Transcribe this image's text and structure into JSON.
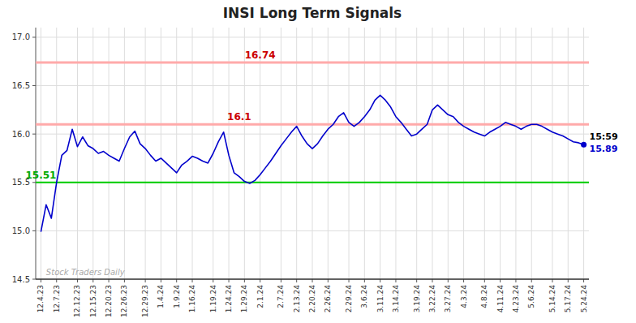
{
  "chart_data": {
    "type": "line",
    "title": "INSI Long Term Signals",
    "categories": [
      "12.4.23",
      null,
      null,
      "12.7.23",
      null,
      null,
      null,
      "12.12.23",
      null,
      null,
      "12.15.23",
      null,
      null,
      "12.20.23",
      null,
      null,
      "12.26.23",
      null,
      null,
      null,
      "12.29.23",
      null,
      null,
      "1.4.24",
      null,
      null,
      "1.9.24",
      null,
      null,
      "1.16.24",
      null,
      null,
      null,
      "1.19.24",
      null,
      null,
      "1.24.24",
      null,
      null,
      "1.29.24",
      null,
      null,
      "2.1.24",
      null,
      null,
      null,
      "2.7.24",
      null,
      null,
      "2.13.24",
      null,
      null,
      "2.20.24",
      null,
      null,
      "2.26.24",
      null,
      null,
      null,
      "2.29.24",
      null,
      null,
      "3.6.24",
      null,
      null,
      "3.11.24",
      null,
      null,
      "3.14.24",
      null,
      null,
      null,
      "3.19.24",
      null,
      null,
      "3.22.24",
      null,
      null,
      "3.27.24",
      null,
      null,
      "4.3.24",
      null,
      null,
      null,
      "4.8.24",
      null,
      null,
      "4.11.24",
      null,
      null,
      "4.23.24",
      null,
      null,
      "5.6.24",
      null,
      null,
      null,
      "5.14.24",
      null,
      null,
      "5.17.24",
      null,
      null,
      "5.24.24"
    ],
    "series": [
      {
        "color": "#0000cc",
        "values": [
          14.99,
          15.27,
          15.13,
          15.5,
          15.78,
          15.83,
          16.05,
          15.87,
          15.97,
          15.88,
          15.85,
          15.8,
          15.82,
          15.78,
          15.75,
          15.72,
          15.85,
          15.97,
          16.03,
          15.9,
          15.85,
          15.78,
          15.72,
          15.75,
          15.7,
          15.65,
          15.6,
          15.68,
          15.72,
          15.77,
          15.75,
          15.72,
          15.7,
          15.8,
          15.92,
          16.02,
          15.78,
          15.6,
          15.56,
          15.51,
          15.49,
          15.52,
          15.58,
          15.65,
          15.72,
          15.8,
          15.88,
          15.95,
          16.02,
          16.08,
          15.98,
          15.9,
          15.85,
          15.9,
          15.98,
          16.05,
          16.1,
          16.18,
          16.22,
          16.12,
          16.08,
          16.12,
          16.18,
          16.25,
          16.35,
          16.4,
          16.35,
          16.28,
          16.18,
          16.12,
          16.05,
          15.98,
          16.0,
          16.05,
          16.1,
          16.25,
          16.3,
          16.25,
          16.2,
          16.18,
          16.12,
          16.08,
          16.05,
          16.02,
          16.0,
          15.98,
          16.02,
          16.05,
          16.08,
          16.12,
          16.1,
          16.08,
          16.05,
          16.08,
          16.1,
          16.1,
          16.08,
          16.05,
          16.02,
          16.0,
          15.98,
          15.95,
          15.92,
          15.91,
          15.89
        ]
      }
    ],
    "ylim": [
      14.5,
      17.1
    ],
    "yticks": [
      14.5,
      {
        "value": 15.0,
        "label": "15.0"
      },
      15.5,
      {
        "value": 16.0,
        "label": "16.0"
      },
      16.5,
      {
        "value": 17.0,
        "label": "17.0"
      }
    ],
    "grid": true,
    "hlines": [
      {
        "value": 16.74,
        "color": "#ffaaaa",
        "label": "16.74",
        "label_color": "#cc0000"
      },
      {
        "value": 16.1,
        "color": "#ffaaaa",
        "label": "16.1",
        "label_color": "#cc0000"
      },
      {
        "value": 15.5,
        "color": "#00cc00",
        "label": "15.51",
        "label_color": "#00aa00"
      }
    ],
    "watermark": {
      "text": "Stock Traders Daily",
      "color": "#aaaaaa"
    },
    "end_labels": [
      {
        "text": "15:59",
        "color": "#000000"
      },
      {
        "text": "15.89",
        "value": 15.89,
        "color": "#0000cc"
      }
    ]
  }
}
